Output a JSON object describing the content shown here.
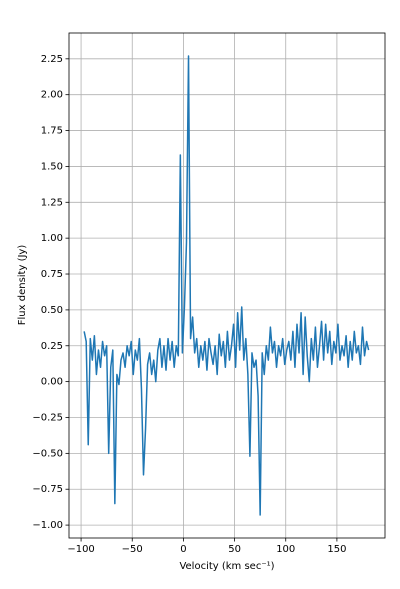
{
  "chart_data": {
    "type": "line",
    "xlabel": "Velocity (km sec⁻¹)",
    "ylabel": "Flux density (Jy)",
    "x": [
      -97,
      -95,
      -93,
      -91,
      -89,
      -87,
      -85,
      -83,
      -81,
      -79,
      -77,
      -75,
      -73,
      -71,
      -69,
      -67,
      -65,
      -63,
      -61,
      -59,
      -57,
      -55,
      -53,
      -51,
      -49,
      -47,
      -45,
      -43,
      -41,
      -39,
      -37,
      -35,
      -33,
      -31,
      -29,
      -27,
      -25,
      -23,
      -21,
      -19,
      -17,
      -15,
      -13,
      -11,
      -9,
      -7,
      -5,
      -3,
      -1,
      1,
      3,
      5,
      7,
      9,
      11,
      13,
      15,
      17,
      19,
      21,
      23,
      25,
      27,
      29,
      31,
      33,
      35,
      37,
      39,
      41,
      43,
      45,
      47,
      49,
      51,
      53,
      55,
      57,
      59,
      61,
      63,
      65,
      67,
      69,
      71,
      73,
      75,
      77,
      79,
      81,
      83,
      85,
      87,
      89,
      91,
      93,
      95,
      97,
      99,
      101,
      103,
      105,
      107,
      109,
      111,
      113,
      115,
      117,
      119,
      121,
      123,
      125,
      127,
      129,
      131,
      133,
      135,
      137,
      139,
      141,
      143,
      145,
      147,
      149,
      151,
      153,
      155,
      157,
      159,
      161,
      163,
      165,
      167,
      169,
      171,
      173,
      175,
      177,
      179,
      181
    ],
    "series": [
      {
        "color": "#1f77b4",
        "values": [
          0.35,
          0.28,
          -0.44,
          0.3,
          0.15,
          0.32,
          0.05,
          0.22,
          0.1,
          0.28,
          0.18,
          0.25,
          -0.5,
          0.1,
          0.22,
          -0.85,
          0.05,
          -0.02,
          0.15,
          0.2,
          0.1,
          0.25,
          0.18,
          0.28,
          0.05,
          0.22,
          0.15,
          0.3,
          -0.05,
          -0.65,
          -0.33,
          0.12,
          0.2,
          0.05,
          0.15,
          0.0,
          0.22,
          0.3,
          0.1,
          0.25,
          0.08,
          0.3,
          0.15,
          0.28,
          0.1,
          0.25,
          0.18,
          1.58,
          0.2,
          0.52,
          0.97,
          2.27,
          0.3,
          0.45,
          0.2,
          0.3,
          0.1,
          0.25,
          0.15,
          0.28,
          0.08,
          0.3,
          0.2,
          0.12,
          0.25,
          0.05,
          0.33,
          0.18,
          0.28,
          0.1,
          0.35,
          0.15,
          0.25,
          0.4,
          0.1,
          0.48,
          0.22,
          0.52,
          0.15,
          0.3,
          0.05,
          -0.52,
          0.2,
          0.1,
          0.15,
          -0.1,
          -0.93,
          0.2,
          0.05,
          0.25,
          0.15,
          0.38,
          0.2,
          0.28,
          0.1,
          0.25,
          0.18,
          0.3,
          0.12,
          0.22,
          0.28,
          0.15,
          0.35,
          0.1,
          0.4,
          0.2,
          0.48,
          0.05,
          0.45,
          0.18,
          0.0,
          0.3,
          0.15,
          0.38,
          0.1,
          0.25,
          0.42,
          0.15,
          0.4,
          0.2,
          0.35,
          0.12,
          0.28,
          0.2,
          0.4,
          0.15,
          0.25,
          0.18,
          0.32,
          0.1,
          0.28,
          0.15,
          0.35,
          0.2,
          0.25,
          0.12,
          0.38,
          0.18,
          0.28,
          0.22
        ]
      }
    ],
    "xlim": [
      -111.8,
      197
    ],
    "ylim": [
      -1.09,
      2.43
    ],
    "xticks": [
      {
        "value": -100,
        "label": "−100"
      },
      {
        "value": -50,
        "label": "−50"
      },
      0,
      50,
      100,
      150
    ],
    "yticks": [
      {
        "value": -1,
        "label": "−1.00"
      },
      {
        "value": -0.75,
        "label": "−0.75"
      },
      {
        "value": -0.5,
        "label": "−0.50"
      },
      {
        "value": -0.25,
        "label": "−0.25"
      },
      {
        "value": 0,
        "label": "0.00"
      },
      {
        "value": 0.25,
        "label": "0.25"
      },
      {
        "value": 0.5,
        "label": "0.50"
      },
      {
        "value": 0.75,
        "label": "0.75"
      },
      {
        "value": 1,
        "label": "1.00"
      },
      {
        "value": 1.25,
        "label": "1.25"
      },
      {
        "value": 1.5,
        "label": "1.50"
      },
      {
        "value": 1.75,
        "label": "1.75"
      },
      {
        "value": 2,
        "label": "2.00"
      },
      {
        "value": 2.25,
        "label": "2.25"
      }
    ],
    "grid": true
  }
}
